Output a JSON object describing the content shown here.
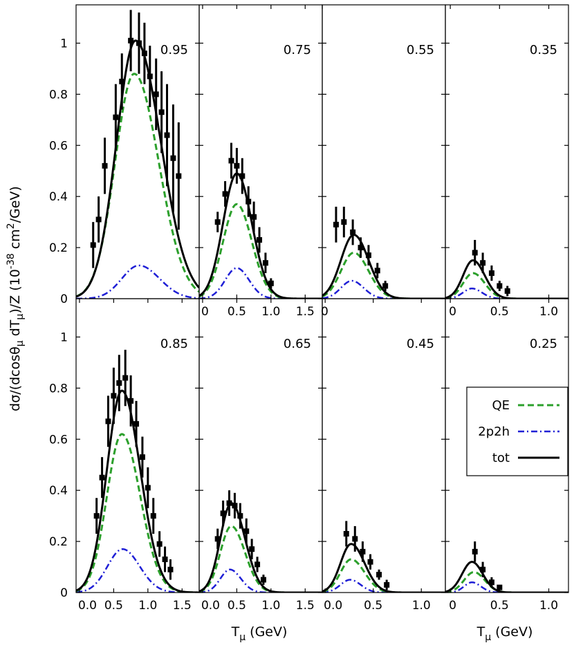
{
  "figure": {
    "ylabel": "dσ/(dcosθ_μ dT_μ)/Z (10^-38 cm^2/GeV)",
    "xlabel": "T_μ (GeV)",
    "colors": {
      "qe": "#2ca02c",
      "twop2h": "#1f1fd6",
      "tot": "#000000",
      "data": "#000000"
    },
    "legend": {
      "placement": "right, bottom-row fourth panel",
      "entries": [
        {
          "label": "QE",
          "series": "qe",
          "style": "dashed"
        },
        {
          "label": "2p2h",
          "series": "twop2h",
          "style": "dash-dot"
        },
        {
          "label": "tot",
          "series": "tot",
          "style": "solid"
        }
      ]
    }
  },
  "chart_data": [
    {
      "type": "line",
      "label": "0.95",
      "row": 0,
      "col": 0,
      "xlim": [
        0,
        1.8
      ],
      "ylim": [
        0,
        1.15
      ],
      "xticks": [],
      "yticks": [
        "0",
        "0.2",
        "0.4",
        "0.6",
        "0.8",
        "1"
      ],
      "series": {
        "qe": {
          "peak_x": 0.85,
          "peak_y": 0.88,
          "sigma_left": 0.28,
          "sigma_right": 0.36
        },
        "twop2h": {
          "peak_x": 0.92,
          "peak_y": 0.13,
          "sigma_left": 0.25,
          "sigma_right": 0.3
        },
        "tot": {
          "peak_x": 0.87,
          "peak_y": 1.01,
          "sigma_left": 0.28,
          "sigma_right": 0.37
        }
      },
      "data_points": [
        {
          "x": 0.25,
          "y": 0.21,
          "err": 0.09
        },
        {
          "x": 0.33,
          "y": 0.31,
          "err": 0.09
        },
        {
          "x": 0.42,
          "y": 0.52,
          "err": 0.11
        },
        {
          "x": 0.58,
          "y": 0.71,
          "err": 0.13
        },
        {
          "x": 0.67,
          "y": 0.85,
          "err": 0.11
        },
        {
          "x": 0.8,
          "y": 1.01,
          "err": 0.12
        },
        {
          "x": 0.92,
          "y": 1.0,
          "err": 0.12
        },
        {
          "x": 1.0,
          "y": 0.96,
          "err": 0.12
        },
        {
          "x": 1.08,
          "y": 0.87,
          "err": 0.12
        },
        {
          "x": 1.17,
          "y": 0.8,
          "err": 0.14
        },
        {
          "x": 1.25,
          "y": 0.73,
          "err": 0.16
        },
        {
          "x": 1.33,
          "y": 0.64,
          "err": 0.2
        },
        {
          "x": 1.42,
          "y": 0.55,
          "err": 0.21
        },
        {
          "x": 1.5,
          "y": 0.48,
          "err": 0.21
        }
      ]
    },
    {
      "type": "line",
      "label": "0.75",
      "row": 0,
      "col": 1,
      "xlim": [
        -0.05,
        1.75
      ],
      "ylim": [
        0,
        1.15
      ],
      "xticks": [
        "0",
        "0.5",
        "1.0",
        "1.5"
      ],
      "yticks": [],
      "series": {
        "qe": {
          "peak_x": 0.5,
          "peak_y": 0.37,
          "sigma_left": 0.2,
          "sigma_right": 0.22
        },
        "twop2h": {
          "peak_x": 0.5,
          "peak_y": 0.12,
          "sigma_left": 0.17,
          "sigma_right": 0.18
        },
        "tot": {
          "peak_x": 0.5,
          "peak_y": 0.49,
          "sigma_left": 0.2,
          "sigma_right": 0.22
        }
      },
      "data_points": [
        {
          "x": 0.22,
          "y": 0.3,
          "err": 0.04
        },
        {
          "x": 0.33,
          "y": 0.41,
          "err": 0.05
        },
        {
          "x": 0.42,
          "y": 0.54,
          "err": 0.07
        },
        {
          "x": 0.5,
          "y": 0.52,
          "err": 0.07
        },
        {
          "x": 0.58,
          "y": 0.48,
          "err": 0.07
        },
        {
          "x": 0.67,
          "y": 0.38,
          "err": 0.06
        },
        {
          "x": 0.75,
          "y": 0.32,
          "err": 0.06
        },
        {
          "x": 0.83,
          "y": 0.23,
          "err": 0.05
        },
        {
          "x": 0.92,
          "y": 0.14,
          "err": 0.04
        },
        {
          "x": 1.0,
          "y": 0.06,
          "err": 0.02
        }
      ]
    },
    {
      "type": "line",
      "label": "0.55",
      "row": 0,
      "col": 2,
      "xlim": [
        0,
        1.25
      ],
      "ylim": [
        0,
        1.15
      ],
      "xticks": [
        "0"
      ],
      "yticks": [],
      "series": {
        "qe": {
          "peak_x": 0.32,
          "peak_y": 0.18,
          "sigma_left": 0.13,
          "sigma_right": 0.15
        },
        "twop2h": {
          "peak_x": 0.3,
          "peak_y": 0.07,
          "sigma_left": 0.11,
          "sigma_right": 0.12
        },
        "tot": {
          "peak_x": 0.32,
          "peak_y": 0.25,
          "sigma_left": 0.13,
          "sigma_right": 0.15
        }
      },
      "data_points": [
        {
          "x": 0.14,
          "y": 0.29,
          "err": 0.07
        },
        {
          "x": 0.22,
          "y": 0.3,
          "err": 0.06
        },
        {
          "x": 0.31,
          "y": 0.26,
          "err": 0.05
        },
        {
          "x": 0.39,
          "y": 0.2,
          "err": 0.04
        },
        {
          "x": 0.47,
          "y": 0.17,
          "err": 0.04
        },
        {
          "x": 0.56,
          "y": 0.11,
          "err": 0.03
        },
        {
          "x": 0.64,
          "y": 0.05,
          "err": 0.02
        }
      ]
    },
    {
      "type": "line",
      "label": "0.35",
      "row": 0,
      "col": 3,
      "xlim": [
        -0.05,
        1.2
      ],
      "ylim": [
        0,
        1.15
      ],
      "xticks": [
        "0",
        "0.5",
        "1.0"
      ],
      "yticks": [],
      "series": {
        "qe": {
          "peak_x": 0.23,
          "peak_y": 0.1,
          "sigma_left": 0.1,
          "sigma_right": 0.12
        },
        "twop2h": {
          "peak_x": 0.22,
          "peak_y": 0.04,
          "sigma_left": 0.09,
          "sigma_right": 0.1
        },
        "tot": {
          "peak_x": 0.23,
          "peak_y": 0.15,
          "sigma_left": 0.1,
          "sigma_right": 0.12
        }
      },
      "data_points": [
        {
          "x": 0.25,
          "y": 0.18,
          "err": 0.05
        },
        {
          "x": 0.33,
          "y": 0.14,
          "err": 0.04
        },
        {
          "x": 0.42,
          "y": 0.1,
          "err": 0.03
        },
        {
          "x": 0.5,
          "y": 0.05,
          "err": 0.02
        },
        {
          "x": 0.58,
          "y": 0.03,
          "err": 0.02
        }
      ]
    },
    {
      "type": "line",
      "label": "0.85",
      "row": 1,
      "col": 0,
      "xlim": [
        -0.05,
        1.75
      ],
      "ylim": [
        0,
        1.15
      ],
      "xticks": [
        "0.0",
        "0.5",
        "1.0",
        "1.5"
      ],
      "yticks": [
        "0",
        "0.2",
        "0.4",
        "0.6",
        "0.8",
        "1"
      ],
      "series": {
        "qe": {
          "peak_x": 0.62,
          "peak_y": 0.62,
          "sigma_left": 0.22,
          "sigma_right": 0.27
        },
        "twop2h": {
          "peak_x": 0.63,
          "peak_y": 0.17,
          "sigma_left": 0.22,
          "sigma_right": 0.25
        },
        "tot": {
          "peak_x": 0.62,
          "peak_y": 0.79,
          "sigma_left": 0.22,
          "sigma_right": 0.27
        }
      },
      "data_points": [
        {
          "x": 0.25,
          "y": 0.3,
          "err": 0.07
        },
        {
          "x": 0.33,
          "y": 0.45,
          "err": 0.08
        },
        {
          "x": 0.42,
          "y": 0.67,
          "err": 0.1
        },
        {
          "x": 0.5,
          "y": 0.77,
          "err": 0.11
        },
        {
          "x": 0.58,
          "y": 0.82,
          "err": 0.11
        },
        {
          "x": 0.67,
          "y": 0.84,
          "err": 0.11
        },
        {
          "x": 0.75,
          "y": 0.75,
          "err": 0.1
        },
        {
          "x": 0.83,
          "y": 0.66,
          "err": 0.09
        },
        {
          "x": 0.92,
          "y": 0.53,
          "err": 0.08
        },
        {
          "x": 1.0,
          "y": 0.41,
          "err": 0.08
        },
        {
          "x": 1.08,
          "y": 0.3,
          "err": 0.07
        },
        {
          "x": 1.17,
          "y": 0.19,
          "err": 0.05
        },
        {
          "x": 1.25,
          "y": 0.13,
          "err": 0.05
        },
        {
          "x": 1.33,
          "y": 0.09,
          "err": 0.04
        }
      ]
    },
    {
      "type": "line",
      "label": "0.65",
      "row": 1,
      "col": 1,
      "xlim": [
        -0.05,
        1.75
      ],
      "ylim": [
        0,
        1.15
      ],
      "xticks": [
        "0.0",
        "0.5",
        "1.0",
        "1.5"
      ],
      "yticks": [],
      "series": {
        "qe": {
          "peak_x": 0.42,
          "peak_y": 0.26,
          "sigma_left": 0.16,
          "sigma_right": 0.2
        },
        "twop2h": {
          "peak_x": 0.4,
          "peak_y": 0.09,
          "sigma_left": 0.14,
          "sigma_right": 0.16
        },
        "tot": {
          "peak_x": 0.42,
          "peak_y": 0.35,
          "sigma_left": 0.16,
          "sigma_right": 0.2
        }
      },
      "data_points": [
        {
          "x": 0.22,
          "y": 0.21,
          "err": 0.04
        },
        {
          "x": 0.3,
          "y": 0.31,
          "err": 0.05
        },
        {
          "x": 0.39,
          "y": 0.35,
          "err": 0.05
        },
        {
          "x": 0.47,
          "y": 0.34,
          "err": 0.05
        },
        {
          "x": 0.55,
          "y": 0.3,
          "err": 0.05
        },
        {
          "x": 0.64,
          "y": 0.24,
          "err": 0.05
        },
        {
          "x": 0.72,
          "y": 0.17,
          "err": 0.04
        },
        {
          "x": 0.8,
          "y": 0.11,
          "err": 0.03
        },
        {
          "x": 0.89,
          "y": 0.05,
          "err": 0.02
        }
      ]
    },
    {
      "type": "line",
      "label": "0.45",
      "row": 1,
      "col": 2,
      "xlim": [
        -0.03,
        1.25
      ],
      "ylim": [
        0,
        1.15
      ],
      "xticks": [
        "0.0",
        "0.5",
        "1.0"
      ],
      "yticks": [],
      "series": {
        "qe": {
          "peak_x": 0.27,
          "peak_y": 0.13,
          "sigma_left": 0.11,
          "sigma_right": 0.14
        },
        "twop2h": {
          "peak_x": 0.26,
          "peak_y": 0.05,
          "sigma_left": 0.1,
          "sigma_right": 0.11
        },
        "tot": {
          "peak_x": 0.27,
          "peak_y": 0.19,
          "sigma_left": 0.11,
          "sigma_right": 0.14
        }
      },
      "data_points": [
        {
          "x": 0.22,
          "y": 0.23,
          "err": 0.05
        },
        {
          "x": 0.31,
          "y": 0.21,
          "err": 0.05
        },
        {
          "x": 0.39,
          "y": 0.16,
          "err": 0.04
        },
        {
          "x": 0.47,
          "y": 0.12,
          "err": 0.03
        },
        {
          "x": 0.56,
          "y": 0.07,
          "err": 0.02
        },
        {
          "x": 0.64,
          "y": 0.03,
          "err": 0.02
        }
      ]
    },
    {
      "type": "line",
      "label": "0.25",
      "row": 1,
      "col": 3,
      "xlim": [
        -0.05,
        1.2
      ],
      "ylim": [
        0,
        1.15
      ],
      "xticks": [
        "0",
        "0.5",
        "1.0"
      ],
      "yticks": [],
      "series": {
        "qe": {
          "peak_x": 0.24,
          "peak_y": 0.08,
          "sigma_left": 0.1,
          "sigma_right": 0.11
        },
        "twop2h": {
          "peak_x": 0.22,
          "peak_y": 0.04,
          "sigma_left": 0.08,
          "sigma_right": 0.09
        },
        "tot": {
          "peak_x": 0.22,
          "peak_y": 0.12,
          "sigma_left": 0.1,
          "sigma_right": 0.11
        }
      },
      "data_points": [
        {
          "x": 0.25,
          "y": 0.16,
          "err": 0.04
        },
        {
          "x": 0.33,
          "y": 0.09,
          "err": 0.03
        },
        {
          "x": 0.42,
          "y": 0.04,
          "err": 0.02
        },
        {
          "x": 0.5,
          "y": 0.02,
          "err": 0.01
        }
      ]
    }
  ]
}
